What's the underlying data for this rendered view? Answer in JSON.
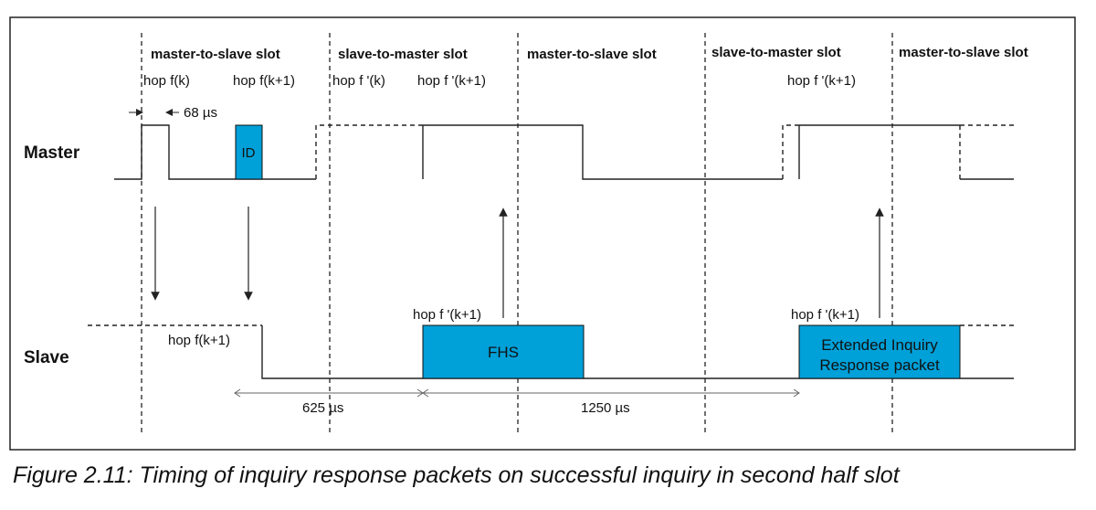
{
  "slot_headers": [
    "master-to-slave slot",
    "slave-to-master slot",
    "master-to-slave slot",
    "slave-to-master slot",
    "master-to-slave slot"
  ],
  "row_labels": {
    "master": "Master",
    "slave": "Slave"
  },
  "hop_labels": {
    "m_fk": "hop f(k)",
    "m_fk1": "hop f(k+1)",
    "m_fpk": "hop f '(k)",
    "m_fpk1": "hop f '(k+1)",
    "m_fpk1_late": "hop f '(k+1)",
    "s_fk1": "hop f(k+1)",
    "s_fpk1": "hop f '(k+1)",
    "s_fpk1_late": "hop f '(k+1)"
  },
  "timing": {
    "offset": "68 µs",
    "slot_duration": "625 µs",
    "long_duration": "1250 µs"
  },
  "packets": {
    "id": "ID",
    "fhs": "FHS",
    "eir_line1": "Extended Inquiry",
    "eir_line2": "Response packet"
  },
  "caption": "Figure 2.11:  Timing of inquiry response packets on successful inquiry in second half slot",
  "colors": {
    "packet_fill": "#00a0d8",
    "line": "#222222"
  }
}
